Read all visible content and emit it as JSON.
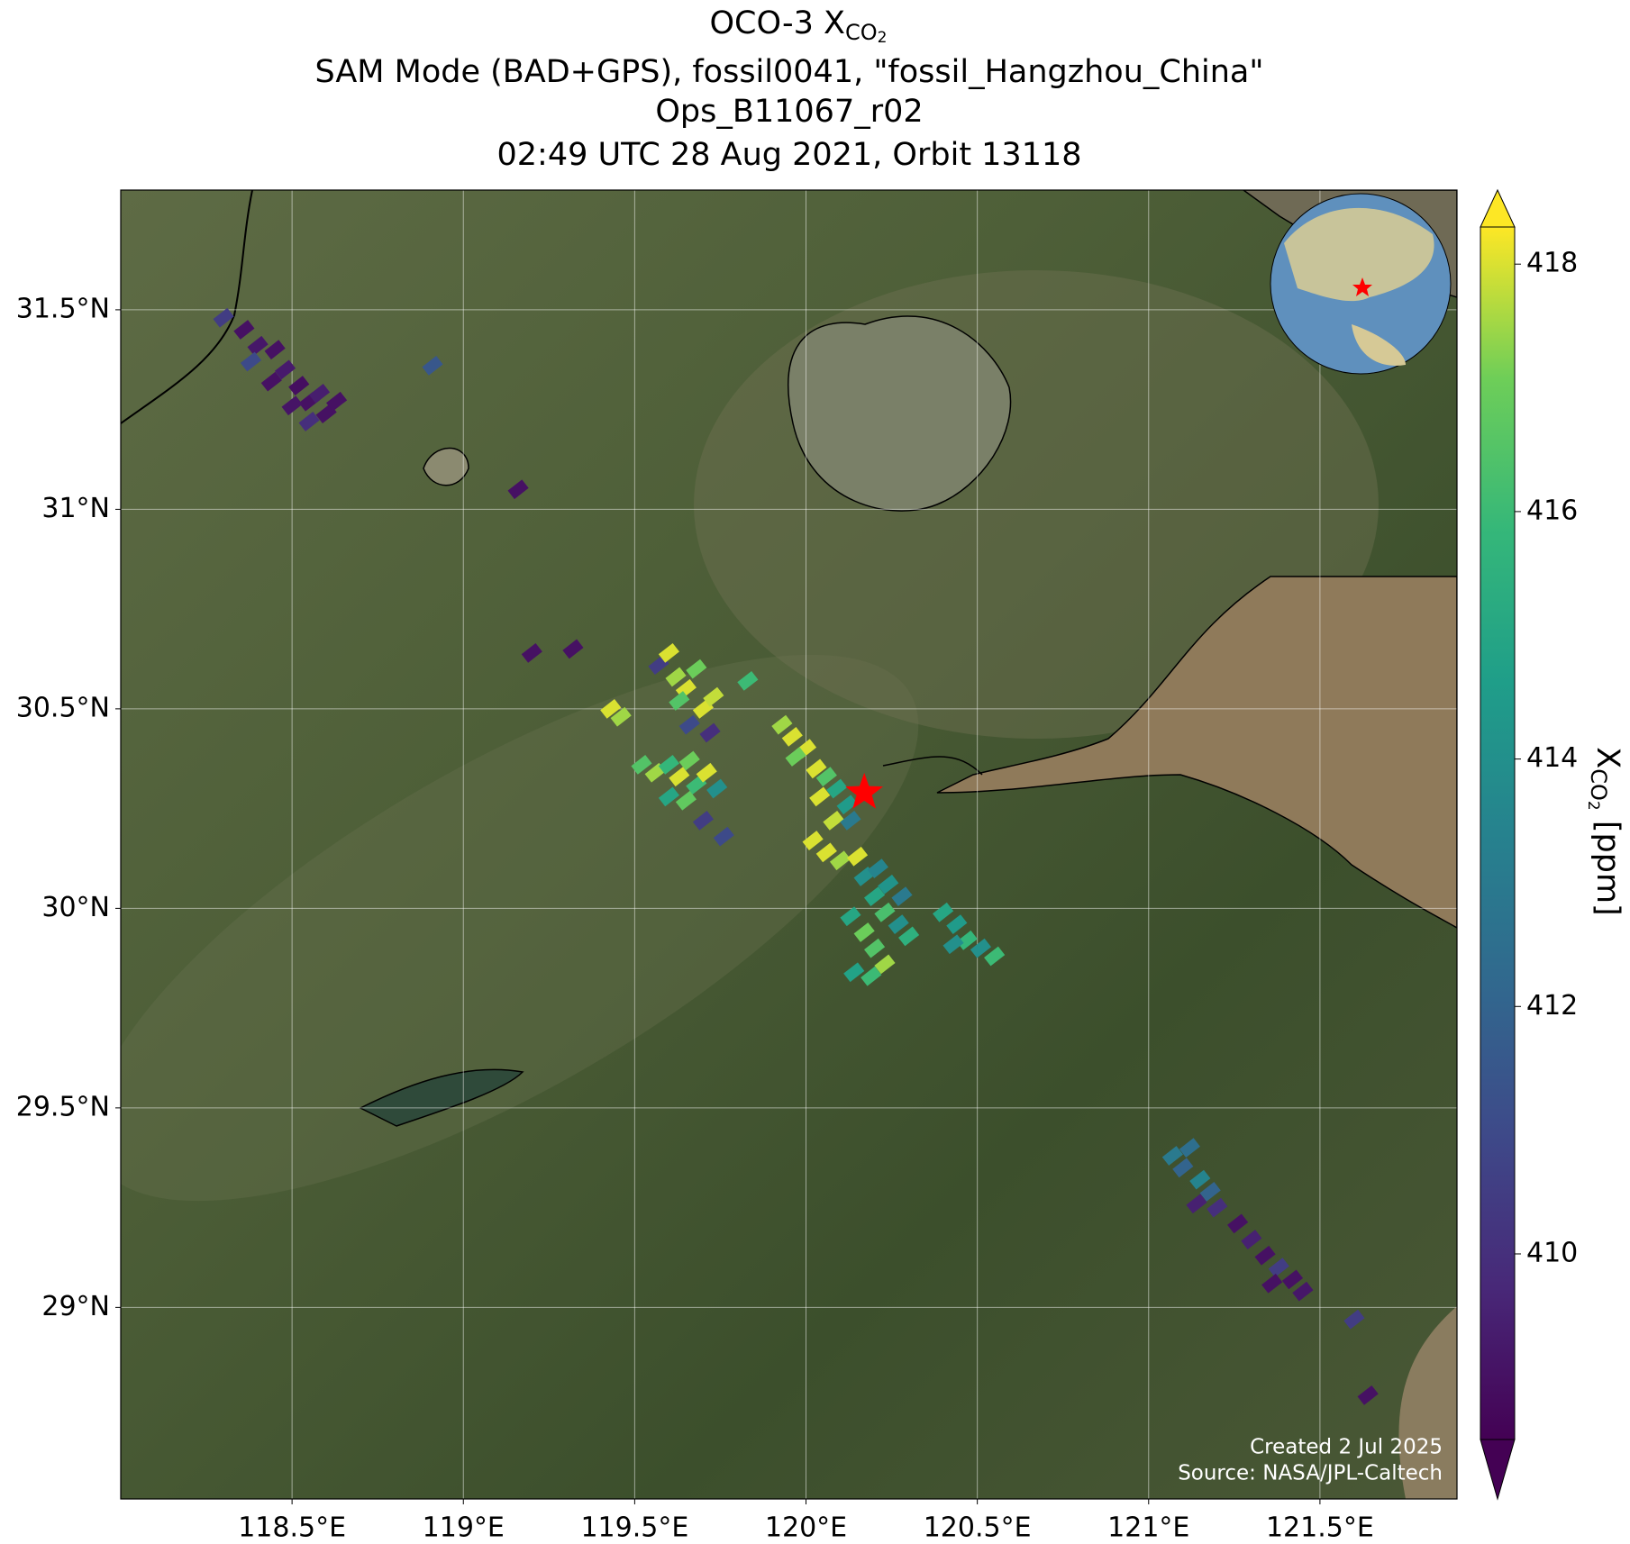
{
  "chart_data": {
    "type": "map",
    "title": {
      "prefix": "OCO-3 X",
      "sub": "CO",
      "subsub": "2"
    },
    "subtitle": "SAM Mode (BAD+GPS), fossil0041, \"fossil_Hangzhou_China\"",
    "version": "Ops_B11067_r02",
    "time": "02:49 UTC 28 Aug 2021, Orbit 13118",
    "xlim": [
      118.0,
      121.9
    ],
    "ylim": [
      28.52,
      31.8
    ],
    "xticks": [
      {
        "value": 118.5,
        "label": "118.5°E"
      },
      {
        "value": 119,
        "label": "119°E"
      },
      {
        "value": 119.5,
        "label": "119.5°E"
      },
      {
        "value": 120,
        "label": "120°E"
      },
      {
        "value": 120.5,
        "label": "120.5°E"
      },
      {
        "value": 121,
        "label": "121°E"
      },
      {
        "value": 121.5,
        "label": "121.5°E"
      }
    ],
    "yticks": [
      {
        "value": 29,
        "label": "29°N"
      },
      {
        "value": 29.5,
        "label": "29.5°N"
      },
      {
        "value": 30,
        "label": "30°N"
      },
      {
        "value": 30.5,
        "label": "30.5°N"
      },
      {
        "value": 31,
        "label": "31°N"
      },
      {
        "value": 31.5,
        "label": "31.5°N"
      }
    ],
    "grid": true,
    "target": {
      "lon": 120.17,
      "lat": 30.29,
      "color": "#ff0000"
    },
    "colorbar": {
      "label": {
        "prefix": "X",
        "sub": "CO",
        "subsub": "2",
        "suffix": " [ppm]"
      },
      "clim": [
        408.5,
        418.3
      ],
      "ticks": [
        410,
        412,
        414,
        416,
        418
      ],
      "colormap": "viridis",
      "extend": "both"
    },
    "x": [
      118.3,
      118.36,
      118.4,
      118.38,
      118.45,
      118.48,
      118.44,
      118.52,
      118.55,
      118.58,
      118.6,
      118.5,
      118.63,
      118.55,
      118.91,
      119.16,
      119.2,
      119.32,
      119.43,
      119.46,
      119.57,
      119.6,
      119.62,
      119.65,
      119.68,
      119.63,
      119.7,
      119.66,
      119.73,
      119.72,
      119.52,
      119.56,
      119.6,
      119.63,
      119.66,
      119.68,
      119.71,
      119.6,
      119.65,
      119.74,
      119.7,
      119.76,
      119.83,
      119.93,
      119.96,
      120.0,
      119.97,
      120.03,
      120.06,
      120.09,
      120.04,
      120.12,
      120.08,
      120.13,
      120.02,
      120.06,
      120.1,
      120.15,
      120.17,
      120.21,
      120.24,
      120.28,
      120.2,
      120.23,
      120.27,
      120.3,
      120.13,
      120.17,
      120.2,
      120.23,
      120.14,
      120.19,
      120.4,
      120.44,
      120.47,
      120.51,
      120.55,
      120.43,
      121.07,
      121.1,
      121.12,
      121.15,
      121.18,
      121.14,
      121.2,
      121.26,
      121.3,
      121.34,
      121.38,
      121.42,
      121.45,
      121.36,
      121.6,
      121.64
    ],
    "y": [
      31.48,
      31.45,
      31.41,
      31.37,
      31.4,
      31.35,
      31.32,
      31.31,
      31.27,
      31.29,
      31.24,
      31.26,
      31.27,
      31.22,
      31.36,
      31.05,
      30.64,
      30.65,
      30.5,
      30.48,
      30.61,
      30.64,
      30.58,
      30.55,
      30.6,
      30.52,
      30.5,
      30.46,
      30.53,
      30.44,
      30.36,
      30.34,
      30.36,
      30.33,
      30.37,
      30.31,
      30.34,
      30.28,
      30.27,
      30.3,
      30.22,
      30.18,
      30.57,
      30.46,
      30.43,
      30.4,
      30.38,
      30.35,
      30.33,
      30.3,
      30.28,
      30.26,
      30.22,
      30.22,
      30.17,
      30.14,
      30.12,
      30.13,
      30.08,
      30.1,
      30.06,
      30.03,
      30.03,
      29.99,
      29.96,
      29.93,
      29.98,
      29.94,
      29.9,
      29.86,
      29.84,
      29.83,
      29.99,
      29.96,
      29.92,
      29.9,
      29.88,
      29.91,
      29.38,
      29.35,
      29.4,
      29.32,
      29.29,
      29.26,
      29.25,
      29.21,
      29.17,
      29.13,
      29.1,
      29.07,
      29.04,
      29.06,
      28.97,
      28.78
    ],
    "values": [
      410.5,
      409,
      409.2,
      411,
      409,
      409.3,
      409,
      408.9,
      409,
      409.4,
      409,
      409.1,
      409,
      410,
      411.5,
      409,
      409,
      409,
      418,
      417.5,
      410.5,
      418,
      417.5,
      418,
      417,
      416.5,
      418,
      411,
      417.8,
      410,
      416.5,
      417.5,
      415.8,
      418,
      417,
      416,
      418,
      415,
      416.8,
      414,
      410.5,
      411,
      416,
      417.5,
      418,
      418,
      417,
      418,
      416.5,
      415,
      418,
      414.5,
      417.8,
      413,
      418,
      418,
      417.5,
      418,
      414,
      413.5,
      414.2,
      413,
      415,
      416.3,
      414,
      415.5,
      415,
      417,
      416.5,
      417.5,
      414.8,
      416,
      415,
      414.5,
      415.8,
      414,
      416,
      414,
      413,
      412,
      412.5,
      413.5,
      412,
      409.5,
      410,
      409,
      409.5,
      409,
      410.5,
      409,
      409.2,
      409,
      410.5,
      409
    ]
  },
  "credits": {
    "created": "Created 2 Jul 2025",
    "source": "Source: NASA/JPL-Caltech"
  }
}
